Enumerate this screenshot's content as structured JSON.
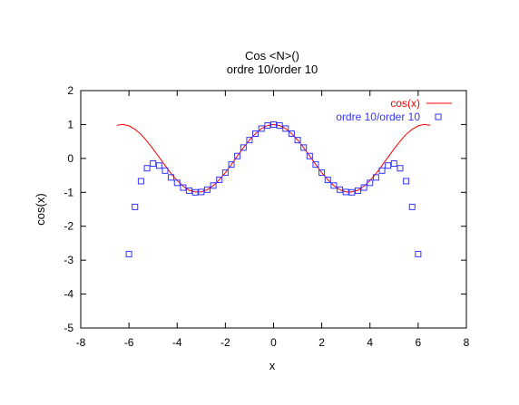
{
  "chart_data": {
    "type": "line",
    "title": "Cos <N>()",
    "subtitle": "ordre 10/order 10",
    "xlabel": "x",
    "ylabel": "cos(x)",
    "xlim": [
      -8,
      8
    ],
    "ylim": [
      -5,
      2
    ],
    "x_ticks": [
      -8,
      -6,
      -4,
      -2,
      0,
      2,
      4,
      6,
      8
    ],
    "y_ticks": [
      -5,
      -4,
      -3,
      -2,
      -1,
      0,
      1,
      2
    ],
    "grid": false,
    "legend_position": "top-right",
    "series": [
      {
        "name": "cos(x)",
        "style": "line",
        "color": "#ff0000",
        "x": [
          -6.5,
          -6.25,
          -6,
          -5.75,
          -5.5,
          -5.25,
          -5,
          -4.75,
          -4.5,
          -4.25,
          -4,
          -3.75,
          -3.5,
          -3.25,
          -3,
          -2.75,
          -2.5,
          -2.25,
          -2,
          -1.75,
          -1.5,
          -1.25,
          -1,
          -0.75,
          -0.5,
          -0.25,
          0,
          0.25,
          0.5,
          0.75,
          1,
          1.25,
          1.5,
          1.75,
          2,
          2.25,
          2.5,
          2.75,
          3,
          3.25,
          3.5,
          3.75,
          4,
          4.25,
          4.5,
          4.75,
          5,
          5.25,
          5.5,
          5.75,
          6,
          6.25,
          6.5
        ],
        "y": [
          0.98,
          1.0,
          0.96,
          0.86,
          0.71,
          0.51,
          0.28,
          0.04,
          -0.21,
          -0.45,
          -0.65,
          -0.82,
          -0.94,
          -0.99,
          -0.99,
          -0.92,
          -0.8,
          -0.63,
          -0.42,
          -0.18,
          0.07,
          0.32,
          0.54,
          0.73,
          0.88,
          0.97,
          1.0,
          0.97,
          0.88,
          0.73,
          0.54,
          0.32,
          0.07,
          -0.18,
          -0.42,
          -0.63,
          -0.8,
          -0.92,
          -0.99,
          -0.99,
          -0.94,
          -0.82,
          -0.65,
          -0.45,
          -0.21,
          0.04,
          0.28,
          0.51,
          0.71,
          0.86,
          0.96,
          1.0,
          0.98
        ]
      },
      {
        "name": "ordre 10/order 10",
        "style": "markers",
        "marker": "square",
        "color": "#3333ff",
        "x": [
          -6.0,
          -5.75,
          -5.5,
          -5.25,
          -5.0,
          -4.75,
          -4.5,
          -4.25,
          -4.0,
          -3.75,
          -3.5,
          -3.25,
          -3.0,
          -2.75,
          -2.5,
          -2.25,
          -2.0,
          -1.75,
          -1.5,
          -1.25,
          -1.0,
          -0.75,
          -0.5,
          -0.25,
          0.0,
          0.25,
          0.5,
          0.75,
          1.0,
          1.25,
          1.5,
          1.75,
          2.0,
          2.25,
          2.5,
          2.75,
          3.0,
          3.25,
          3.5,
          3.75,
          4.0,
          4.25,
          4.5,
          4.75,
          5.0,
          5.25,
          5.5,
          5.75,
          6.0
        ],
        "y": [
          -2.82,
          -1.43,
          -0.67,
          -0.29,
          -0.15,
          -0.21,
          -0.36,
          -0.56,
          -0.72,
          -0.86,
          -0.95,
          -1.0,
          -0.99,
          -0.92,
          -0.8,
          -0.63,
          -0.42,
          -0.18,
          0.07,
          0.32,
          0.54,
          0.73,
          0.88,
          0.97,
          1.0,
          0.97,
          0.88,
          0.73,
          0.54,
          0.32,
          0.07,
          -0.18,
          -0.42,
          -0.63,
          -0.8,
          -0.92,
          -0.99,
          -1.0,
          -0.95,
          -0.86,
          -0.72,
          -0.56,
          -0.36,
          -0.21,
          -0.15,
          -0.29,
          -0.67,
          -1.43,
          -2.82
        ]
      }
    ]
  }
}
